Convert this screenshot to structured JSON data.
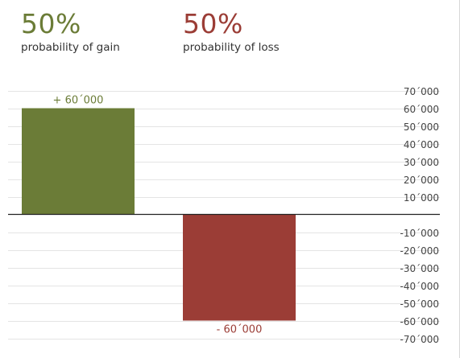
{
  "gain": {
    "percent": "50%",
    "label": "probability of gain",
    "color": "#6b7c37"
  },
  "loss": {
    "percent": "50%",
    "label": "probability of loss",
    "color": "#9b3d36"
  },
  "chart_data": {
    "type": "bar",
    "title": "",
    "xlabel": "",
    "ylabel": "",
    "ylim": [
      -80000,
      80000
    ],
    "yticks": [
      70000,
      60000,
      50000,
      40000,
      30000,
      20000,
      10000,
      -10000,
      -20000,
      -30000,
      -40000,
      -50000,
      -60000,
      -70000
    ],
    "ytick_labels": [
      "70´000",
      "60´000",
      "50´000",
      "40´000",
      "30´000",
      "20´000",
      "10´000",
      "-10´000",
      "-20´000",
      "-30´000",
      "-40´000",
      "-50´000",
      "-60´000",
      "-70´000"
    ],
    "grid": true,
    "bars": [
      {
        "category": "gain",
        "value": 60000,
        "label": "+ 60´000",
        "color": "#6b7c37"
      },
      {
        "category": "loss",
        "value": -60000,
        "label": "- 60´000",
        "color": "#9b3d36"
      }
    ]
  }
}
